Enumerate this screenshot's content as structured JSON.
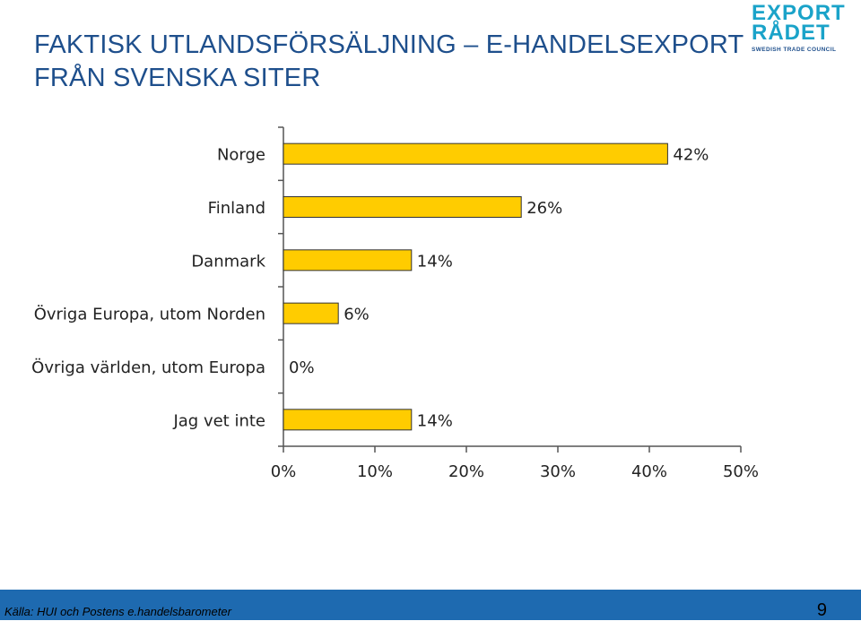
{
  "header": {
    "title_line1": "FAKTISK UTLANDSFÖRSÄLJNING – E-HANDELSEXPORT",
    "title_line2": "FRÅN SVENSKA SITER"
  },
  "logo": {
    "line1": "EXPORT",
    "line2": "RÅDET",
    "line3": "SWEDISH TRADE COUNCIL"
  },
  "colors": {
    "bar_fill": "#ffcc00",
    "bar_stroke": "#333333",
    "title": "#1e4f8c",
    "footer": "#1e6ab0",
    "logo_accent": "#1aa3c9"
  },
  "chart_data": {
    "type": "bar",
    "orientation": "horizontal",
    "categories": [
      "Norge",
      "Finland",
      "Danmark",
      "Övriga Europa, utom Norden",
      "Övriga världen, utom Europa",
      "Jag vet inte"
    ],
    "values": [
      42,
      26,
      14,
      6,
      0,
      14
    ],
    "data_labels": [
      "42%",
      "26%",
      "14%",
      "6%",
      "0%",
      "14%"
    ],
    "xlim": [
      0,
      50
    ],
    "x_ticks": [
      "0%",
      "10%",
      "20%",
      "30%",
      "40%",
      "50%"
    ],
    "grid": false,
    "legend": "none"
  },
  "footer": {
    "source": "Källa: HUI och Postens e.handelsbarometer",
    "page_number": "9"
  }
}
